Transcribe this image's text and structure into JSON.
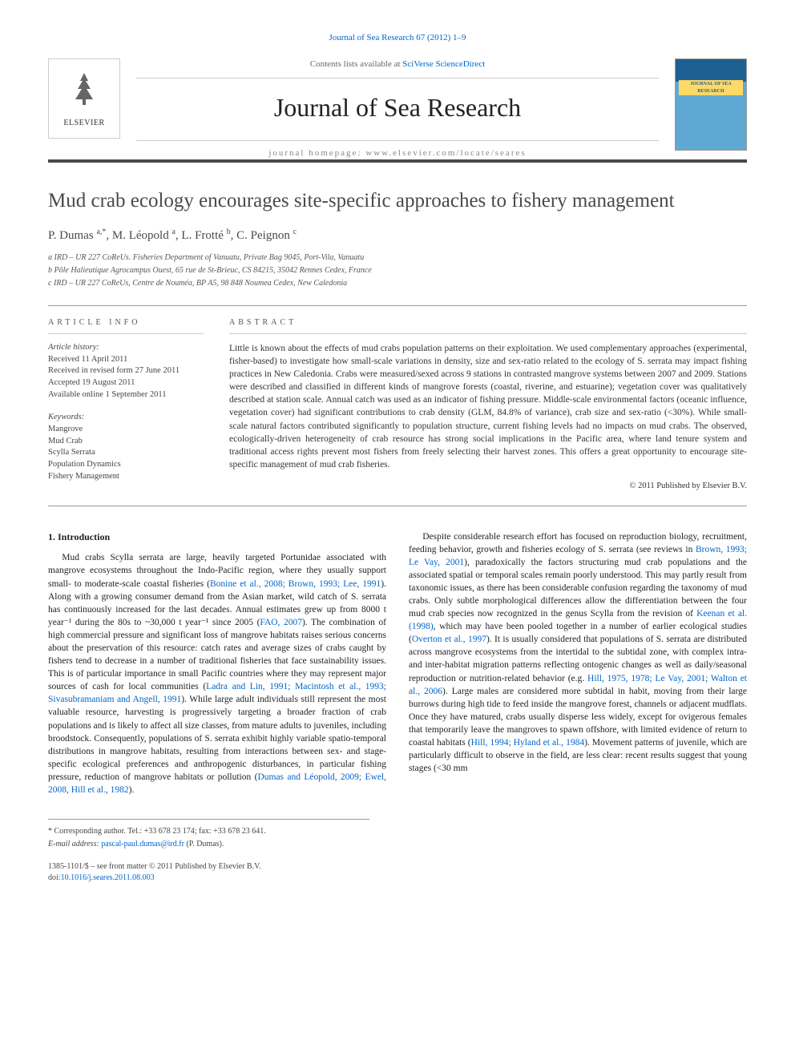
{
  "citation": "Journal of Sea Research 67 (2012) 1–9",
  "masthead": {
    "contents_prefix": "Contents lists available at ",
    "contents_link": "SciVerse ScienceDirect",
    "journal_name": "Journal of Sea Research",
    "homepage_prefix": "journal homepage: ",
    "homepage": "www.elsevier.com/locate/seares",
    "publisher_name": "ELSEVIER",
    "cover_label": "JOURNAL OF SEA RESEARCH"
  },
  "article": {
    "title": "Mud crab ecology encourages site-specific approaches to fishery management",
    "authors_html": "P. Dumas <sup>a,*</sup>, M. Léopold <sup>a</sup>, L. Frotté <sup>b</sup>, C. Peignon <sup>c</sup>",
    "affiliations": [
      "a  IRD – UR 227 CoReUs. Fisheries Department of Vanuatu, Private Bag 9045, Port-Vila, Vanuatu",
      "b  Pôle Halieutique Agrocampus Ouest, 65 rue de St-Brieuc, CS 84215, 35042 Rennes Cedex, France",
      "c  IRD – UR 227 CoReUs, Centre de Nouméa, BP A5, 98 848 Noumea Cedex, New Caledonia"
    ]
  },
  "meta": {
    "section_label_info": "ARTICLE INFO",
    "history_label": "Article history:",
    "history": [
      "Received 11 April 2011",
      "Received in revised form 27 June 2011",
      "Accepted 19 August 2011",
      "Available online 1 September 2011"
    ],
    "keywords_label": "Keywords:",
    "keywords": [
      "Mangrove",
      "Mud Crab",
      "Scylla Serrata",
      "Population Dynamics",
      "Fishery Management"
    ]
  },
  "abstract": {
    "heading": "ABSTRACT",
    "text": "Little is known about the effects of mud crabs population patterns on their exploitation. We used complementary approaches (experimental, fisher-based) to investigate how small-scale variations in density, size and sex-ratio related to the ecology of S. serrata may impact fishing practices in New Caledonia. Crabs were measured/sexed across 9 stations in contrasted mangrove systems between 2007 and 2009. Stations were described and classified in different kinds of mangrove forests (coastal, riverine, and estuarine); vegetation cover was qualitatively described at station scale. Annual catch was used as an indicator of fishing pressure. Middle-scale environmental factors (oceanic influence, vegetation cover) had significant contributions to crab density (GLM, 84.8% of variance), crab size and sex-ratio (<30%). While small-scale natural factors contributed significantly to population structure, current fishing levels had no impacts on mud crabs. The observed, ecologically-driven heterogeneity of crab resource has strong social implications in the Pacific area, where land tenure system and traditional access rights prevent most fishers from freely selecting their harvest zones. This offers a great opportunity to encourage site-specific management of mud crab fisheries.",
    "copyright": "© 2011 Published by Elsevier B.V."
  },
  "body": {
    "section_number": "1.",
    "section_title": "Introduction",
    "paragraphs": [
      "Mud crabs Scylla serrata are large, heavily targeted Portunidae associated with mangrove ecosystems throughout the Indo-Pacific region, where they usually support small- to moderate-scale coastal fisheries (Bonine et al., 2008; Brown, 1993; Lee, 1991). Along with a growing consumer demand from the Asian market, wild catch of S. serrata has continuously increased for the last decades. Annual estimates grew up from 8000 t year⁻¹ during the 80s to ~30,000 t year⁻¹ since 2005 (FAO, 2007). The combination of high commercial pressure and significant loss of mangrove habitats raises serious concerns about the preservation of this resource: catch rates and average sizes of crabs caught by fishers tend to decrease in a number of traditional fisheries that face sustainability issues. This is of particular importance in small Pacific countries where they may represent major sources of cash for local communities (Ladra and Lin, 1991; Macintosh et al., 1993; Sivasubramaniam and Angell, 1991). While large adult individuals still represent the most valuable resource, harvesting is progressively targeting a broader fraction of crab populations and is likely to affect all size classes, from mature adults to juveniles, including broodstock. Consequently, populations of S. serrata exhibit highly variable spatio-temporal distributions in mangrove habitats, resulting from interactions between sex- and stage-specific ecological preferences and anthropogenic disturbances, in particular fishing pressure, reduction of mangrove habitats or pollution (Dumas and Léopold, 2009; Ewel, 2008, Hill et al., 1982).",
      "Despite considerable research effort has focused on reproduction biology, recruitment, feeding behavior, growth and fisheries ecology of S. serrata (see reviews in Brown, 1993; Le Vay, 2001), paradoxically the factors structuring mud crab populations and the associated spatial or temporal scales remain poorly understood. This may partly result from taxonomic issues, as there has been considerable confusion regarding the taxonomy of mud crabs. Only subtle morphological differences allow the differentiation between the four mud crab species now recognized in the genus Scylla from the revision of Keenan et al. (1998), which may have been pooled together in a number of earlier ecological studies (Overton et al., 1997). It is usually considered that populations of S. serrata are distributed across mangrove ecosystems from the intertidal to the subtidal zone, with complex intra- and inter-habitat migration patterns reflecting ontogenic changes as well as daily/seasonal reproduction or nutrition-related behavior (e.g. Hill, 1975, 1978; Le Vay, 2001; Walton et al., 2006). Large males are considered more subtidal in habit, moving from their large burrows during high tide to feed inside the mangrove forest, channels or adjacent mudflats. Once they have matured, crabs usually disperse less widely, except for ovigerous females that temporarily leave the mangroves to spawn offshore, with limited evidence of return to coastal habitats (Hill, 1994; Hyland et al., 1984). Movement patterns of juvenile, which are particularly difficult to observe in the field, are less clear: recent results suggest that young stages (<30 mm"
    ]
  },
  "footer": {
    "corresponding_prefix": "* Corresponding author. Tel.: ",
    "tel": "+33 678 23 174",
    "fax_prefix": "; fax: ",
    "fax": "+33 678 23 641.",
    "email_label": "E-mail address: ",
    "email": "pascal-paul.dumas@ird.fr",
    "email_suffix": " (P. Dumas).",
    "issn_line": "1385-1101/$ – see front matter © 2011 Published by Elsevier B.V.",
    "doi_prefix": "doi:",
    "doi": "10.1016/j.seares.2011.08.003"
  },
  "colors": {
    "link": "#0066cc",
    "text": "#333333",
    "heading": "#4a4a4a",
    "rule": "#999999",
    "cover_top": "#1e6091",
    "cover_bottom": "#5fa8d3",
    "cover_label_bg": "#ffd966"
  },
  "typography": {
    "body_pt": 11.5,
    "title_pt": 25,
    "journal_pt": 32,
    "meta_pt": 10.5,
    "footer_pt": 10
  }
}
